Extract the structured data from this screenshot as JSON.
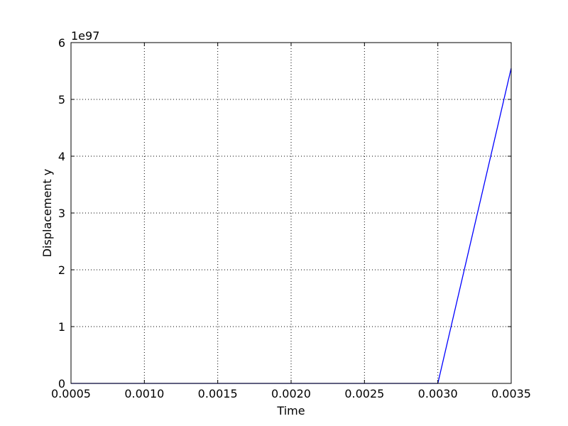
{
  "chart_data": {
    "type": "line",
    "title": "",
    "xlabel": "Time",
    "ylabel": "Displacement y",
    "y_offset_text": "1e97",
    "xlim": [
      0.0005,
      0.0035
    ],
    "ylim": [
      0,
      6
    ],
    "x_ticks": [
      "0.0005",
      "0.0010",
      "0.0015",
      "0.0020",
      "0.0025",
      "0.0030",
      "0.0035"
    ],
    "y_ticks": [
      "0",
      "1",
      "2",
      "3",
      "4",
      "5",
      "6"
    ],
    "grid": true,
    "series": [
      {
        "color": "#0000ff",
        "x": [
          0.0005,
          0.003,
          0.0035
        ],
        "y": [
          0,
          0,
          5.55
        ]
      }
    ]
  }
}
